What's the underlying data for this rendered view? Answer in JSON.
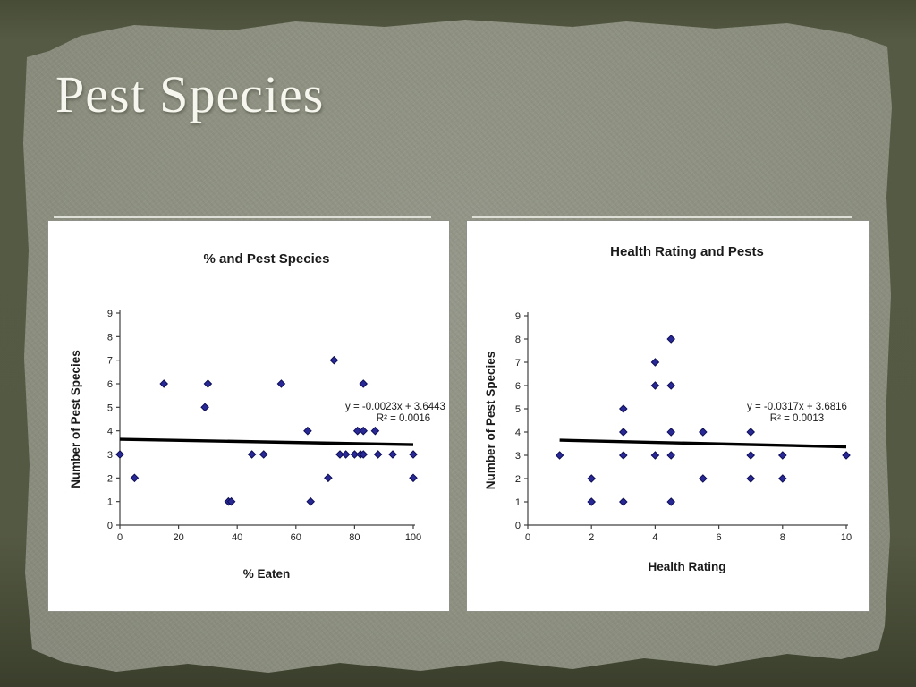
{
  "slide": {
    "title": "Pest Species",
    "colors": {
      "band_dark": "#4a4f3a",
      "paper": "#8e9181",
      "panel_bg": "#ffffff",
      "title_text": "#f6f6ee",
      "marker": "#292996",
      "marker_edge": "#0d0d55",
      "trendline": "#000000",
      "axis": "#404040",
      "chart_text": "#1a1a1a"
    }
  },
  "chart_data": [
    {
      "type": "scatter",
      "title": "% and Pest Species",
      "xlabel": "% Eaten",
      "ylabel": "Number of Pest Species",
      "xlim": [
        0,
        100
      ],
      "ylim": [
        0,
        9
      ],
      "xticks": [
        0,
        20,
        40,
        60,
        80,
        100
      ],
      "yticks": [
        0,
        1,
        2,
        3,
        4,
        5,
        6,
        7,
        8,
        9
      ],
      "grid": false,
      "legend": "none",
      "points": [
        [
          0,
          3
        ],
        [
          5,
          2
        ],
        [
          15,
          6
        ],
        [
          29,
          5
        ],
        [
          30,
          6
        ],
        [
          37,
          1
        ],
        [
          38,
          1
        ],
        [
          45,
          3
        ],
        [
          49,
          3
        ],
        [
          55,
          6
        ],
        [
          64,
          4
        ],
        [
          65,
          1
        ],
        [
          71,
          2
        ],
        [
          73,
          7
        ],
        [
          75,
          3
        ],
        [
          77,
          3
        ],
        [
          80,
          3
        ],
        [
          82,
          3
        ],
        [
          83,
          3
        ],
        [
          81,
          4
        ],
        [
          83,
          4
        ],
        [
          87,
          4
        ],
        [
          83,
          6
        ],
        [
          88,
          3
        ],
        [
          93,
          3
        ],
        [
          100,
          2
        ],
        [
          100,
          3
        ]
      ],
      "trendline": {
        "slope": -0.0023,
        "intercept": 3.6443,
        "x_start": 0,
        "x_end": 100
      },
      "equation_line1": "y = -0.0023x + 3.6443",
      "equation_line2": "R² = 0.0016"
    },
    {
      "type": "scatter",
      "title": "Health Rating and Pests",
      "xlabel": "Health Rating",
      "ylabel": "Number of Pest Species",
      "xlim": [
        0,
        10
      ],
      "ylim": [
        0,
        9
      ],
      "xticks": [
        0,
        2,
        4,
        6,
        8,
        10
      ],
      "yticks": [
        0,
        1,
        2,
        3,
        4,
        5,
        6,
        7,
        8,
        9
      ],
      "grid": false,
      "legend": "none",
      "points": [
        [
          1,
          3
        ],
        [
          2,
          1
        ],
        [
          2,
          2
        ],
        [
          3,
          1
        ],
        [
          3,
          3
        ],
        [
          3,
          4
        ],
        [
          3,
          5
        ],
        [
          4,
          3
        ],
        [
          4,
          6
        ],
        [
          4,
          7
        ],
        [
          4.5,
          1
        ],
        [
          4.5,
          3
        ],
        [
          4.5,
          4
        ],
        [
          4.5,
          6
        ],
        [
          4.5,
          8
        ],
        [
          5.5,
          2
        ],
        [
          5.5,
          4
        ],
        [
          7,
          2
        ],
        [
          7,
          3
        ],
        [
          7,
          4
        ],
        [
          8,
          2
        ],
        [
          8,
          3
        ],
        [
          10,
          3
        ]
      ],
      "trendline": {
        "slope": -0.0317,
        "intercept": 3.6816,
        "x_start": 1,
        "x_end": 10
      },
      "equation_line1": "y = -0.0317x + 3.6816",
      "equation_line2": "R² = 0.0013"
    }
  ]
}
